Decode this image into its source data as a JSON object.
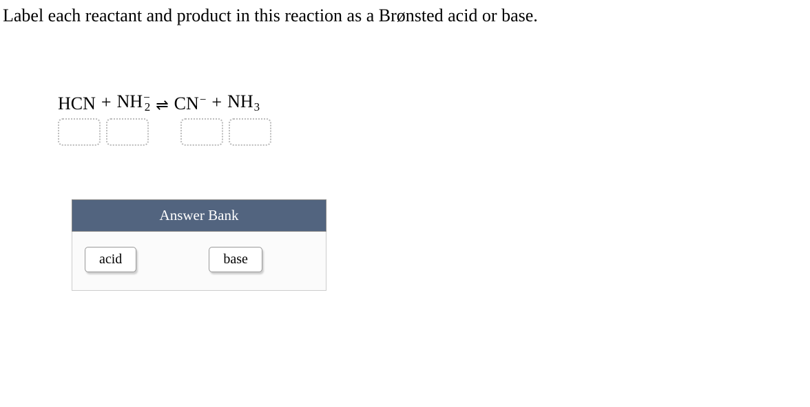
{
  "instruction": "Label each reactant and product in this reaction as a Brønsted acid or base.",
  "equation": {
    "equilibrium_symbol": "⇌",
    "plus_symbol": "+",
    "species": {
      "s1": {
        "base": "HCN",
        "sub": "",
        "sup": ""
      },
      "s2": {
        "base": "NH",
        "sub": "2",
        "sup": "−"
      },
      "s3": {
        "base": "CN",
        "sub": "",
        "sup": "−"
      },
      "s4": {
        "base": "NH",
        "sub": "3",
        "sup": ""
      }
    }
  },
  "answer_bank": {
    "title": "Answer Bank",
    "tiles": {
      "t1": "acid",
      "t2": "base"
    }
  },
  "colors": {
    "header_bg": "#52647f",
    "header_text": "#ffffff",
    "body_bg": "#fbfbfb",
    "tile_bg": "#ffffff",
    "dotted_border": "#bbbbbb"
  }
}
